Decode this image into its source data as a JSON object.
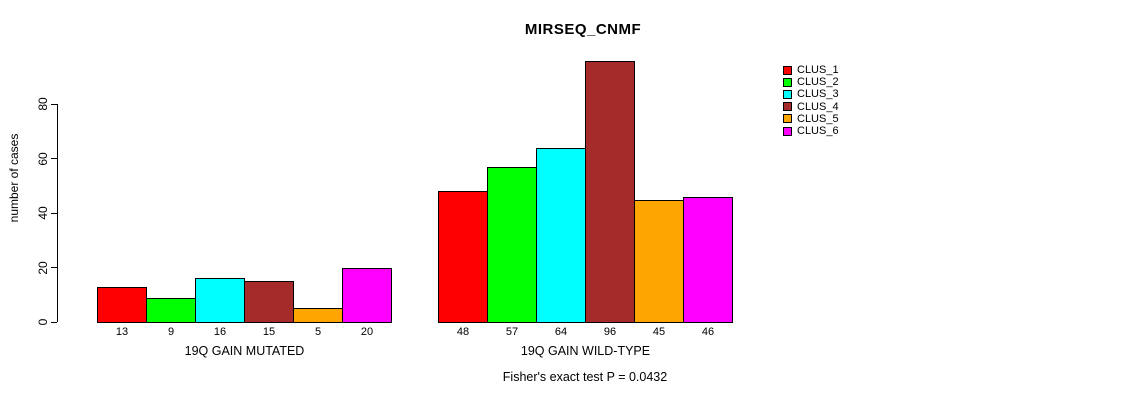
{
  "title": "MIRSEQ_CNMF",
  "footer": "Fisher's exact test P = 0.0432",
  "chart_data": {
    "type": "bar",
    "title": "MIRSEQ_CNMF",
    "xlabel": "",
    "ylabel": "number of cases",
    "ylim": [
      0,
      80
    ],
    "yticks": [
      0,
      20,
      40,
      60,
      80
    ],
    "grid": false,
    "legend_position": "right-outside",
    "categories": [
      "19Q GAIN MUTATED",
      "19Q GAIN WILD-TYPE"
    ],
    "series": [
      {
        "name": "CLUS_1",
        "color": "#ff0000",
        "values": [
          13,
          48
        ]
      },
      {
        "name": "CLUS_2",
        "color": "#00ff00",
        "values": [
          9,
          57
        ]
      },
      {
        "name": "CLUS_3",
        "color": "#00ffff",
        "values": [
          16,
          64
        ]
      },
      {
        "name": "CLUS_4",
        "color": "#a52a2a",
        "values": [
          15,
          96
        ]
      },
      {
        "name": "CLUS_5",
        "color": "#ffa500",
        "values": [
          5,
          45
        ]
      },
      {
        "name": "CLUS_6",
        "color": "#ff00ff",
        "values": [
          20,
          46
        ]
      }
    ],
    "bar_value_labels": [
      [
        13,
        9,
        16,
        15,
        5,
        20
      ],
      [
        48,
        57,
        64,
        96,
        45,
        46
      ]
    ],
    "annotation": "Fisher's exact test P = 0.0432",
    "bar_border_color": "#000000",
    "text_color": "#000000",
    "background_color": "#ffffff"
  }
}
